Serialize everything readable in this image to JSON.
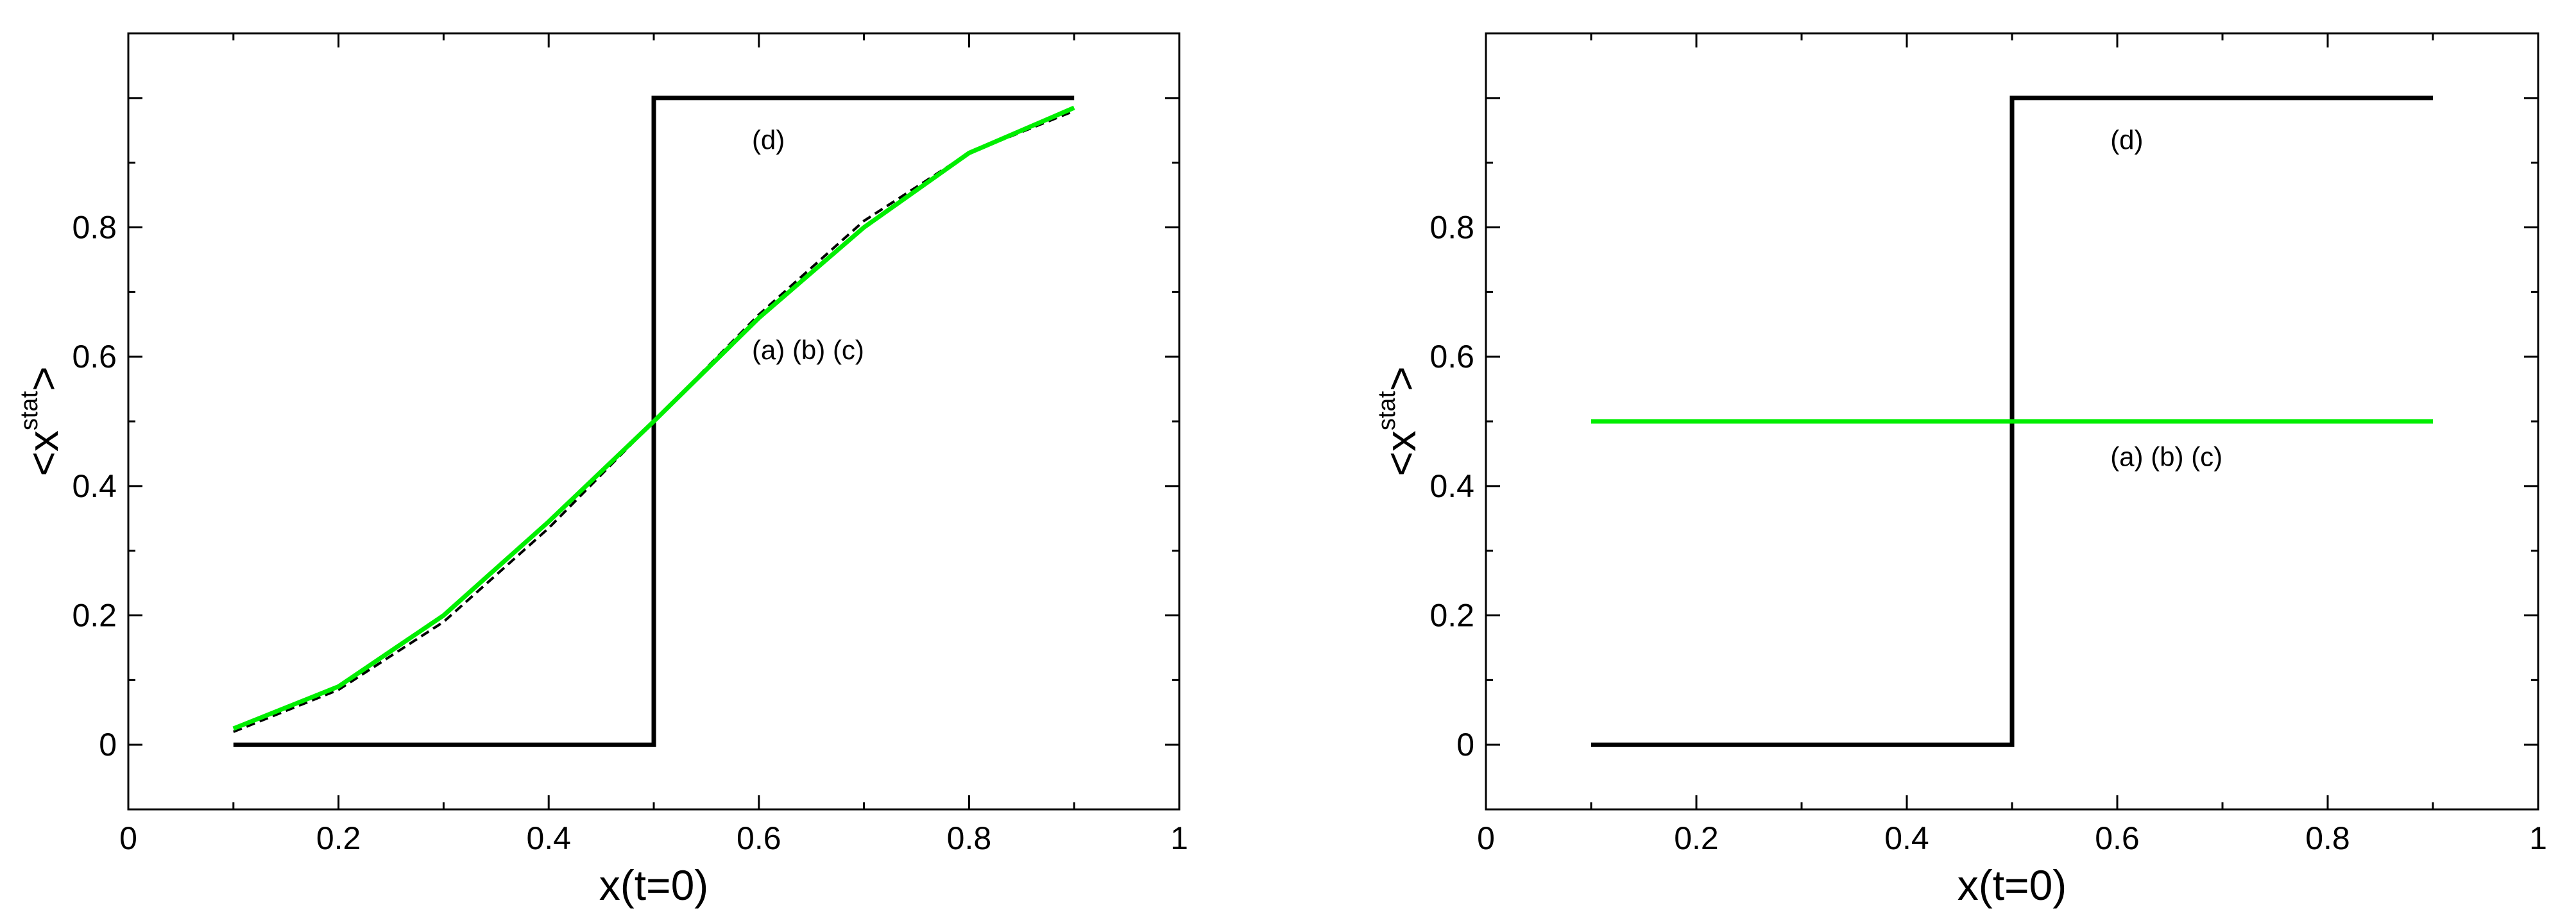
{
  "chart_data": [
    {
      "type": "line",
      "title": "",
      "xlabel": "x(t=0)",
      "ylabel": {
        "prefix": "<x",
        "superscript": "stat",
        "suffix": ">"
      },
      "xlim": [
        0,
        1
      ],
      "ylim": [
        -0.1,
        1.1
      ],
      "x_ticks": [
        0,
        0.2,
        0.4,
        0.6,
        0.8,
        1
      ],
      "x_tick_labels": [
        "0",
        "0.2",
        "0.4",
        "0.6",
        "0.8",
        "1"
      ],
      "y_ticks": [
        0,
        0.2,
        0.4,
        0.6,
        0.8
      ],
      "y_tick_labels": [
        "0",
        "0.2",
        "0.4",
        "0.6",
        "0.8"
      ],
      "grid": false,
      "series": [
        {
          "color": "#000000",
          "x": [
            0.1,
            0.5,
            0.5,
            0.9
          ],
          "y": [
            0,
            0,
            1,
            1
          ]
        },
        {
          "color": "#000000",
          "dashed": true,
          "x": [
            0.1,
            0.2,
            0.3,
            0.4,
            0.5,
            0.6,
            0.7,
            0.8,
            0.9
          ],
          "y": [
            0.02,
            0.085,
            0.19,
            0.335,
            0.5,
            0.665,
            0.81,
            0.915,
            0.98
          ]
        },
        {
          "color": "#00ee00",
          "x": [
            0.1,
            0.2,
            0.3,
            0.4,
            0.5,
            0.6,
            0.7,
            0.8,
            0.9
          ],
          "y": [
            0.025,
            0.09,
            0.2,
            0.345,
            0.5,
            0.66,
            0.8,
            0.915,
            0.985
          ]
        }
      ],
      "annotations": [
        {
          "text": "(d)",
          "x": 0.63,
          "y": 0.935
        },
        {
          "text": "(a) (b) (c)",
          "x": 0.63,
          "y": 0.61
        }
      ]
    },
    {
      "type": "line",
      "title": "",
      "xlabel": "x(t=0)",
      "ylabel": {
        "prefix": "<x",
        "superscript": "stat",
        "suffix": ">"
      },
      "xlim": [
        0,
        1
      ],
      "ylim": [
        -0.1,
        1.1
      ],
      "x_ticks": [
        0,
        0.2,
        0.4,
        0.6,
        0.8,
        1
      ],
      "x_tick_labels": [
        "0",
        "0.2",
        "0.4",
        "0.6",
        "0.8",
        "1"
      ],
      "y_ticks": [
        0,
        0.2,
        0.4,
        0.6,
        0.8
      ],
      "y_tick_labels": [
        "0",
        "0.2",
        "0.4",
        "0.6",
        "0.8"
      ],
      "grid": false,
      "series": [
        {
          "color": "#000000",
          "x": [
            0.1,
            0.5,
            0.5,
            0.9
          ],
          "y": [
            0,
            0,
            1,
            1
          ]
        },
        {
          "color": "#00ee00",
          "x": [
            0.1,
            0.9
          ],
          "y": [
            0.5,
            0.5
          ]
        }
      ],
      "annotations": [
        {
          "text": "(d)",
          "x": 0.63,
          "y": 0.935
        },
        {
          "text": "(a) (b) (c)",
          "x": 0.63,
          "y": 0.445
        }
      ]
    }
  ]
}
